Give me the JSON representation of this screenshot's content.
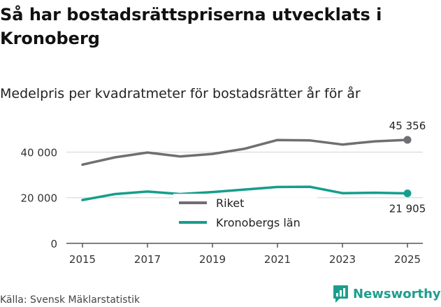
{
  "page": {
    "title": "Så har bostadsrättspriserna utvecklats i Kronoberg",
    "subtitle": "Medelpris per kvadratmeter för bostadsrätter år för år",
    "source": "Källa: Svensk Mäklarstatistik",
    "brand": "Newsworthy"
  },
  "chart_data": {
    "type": "line",
    "title": "Så har bostadsrättspriserna utvecklats i Kronoberg",
    "subtitle": "Medelpris per kvadratmeter för bostadsrätter år för år",
    "xlabel": "",
    "ylabel": "",
    "x": [
      2015,
      2016,
      2017,
      2018,
      2019,
      2020,
      2021,
      2022,
      2023,
      2024,
      2025
    ],
    "xticks": [
      2015,
      2017,
      2019,
      2021,
      2023,
      2025
    ],
    "xtick_labels": [
      "2015",
      "2017",
      "2019",
      "2021",
      "2023",
      "2025"
    ],
    "ylim": [
      0,
      45356
    ],
    "yticks": [
      0,
      20000,
      40000
    ],
    "ytick_labels": [
      "0",
      "20 000",
      "40 000"
    ],
    "grid": "horizontal",
    "legend": "center",
    "series": [
      {
        "name": "Riket",
        "color": "#6e6e73",
        "values": [
          34500,
          37700,
          39800,
          38100,
          39200,
          41500,
          45300,
          45100,
          43300,
          44700,
          45356
        ],
        "end_label": "45 356"
      },
      {
        "name": "Kronobergs län",
        "color": "#159e8d",
        "values": [
          19000,
          21600,
          22700,
          21600,
          22500,
          23600,
          24700,
          24800,
          22000,
          22200,
          21905
        ],
        "end_label": "21 905"
      }
    ]
  },
  "colors": {
    "riket": "#6e6e73",
    "kronoberg": "#159e8d",
    "grid": "#d4d4d4",
    "axis": "#555555",
    "brand": "#1d9e8c"
  }
}
